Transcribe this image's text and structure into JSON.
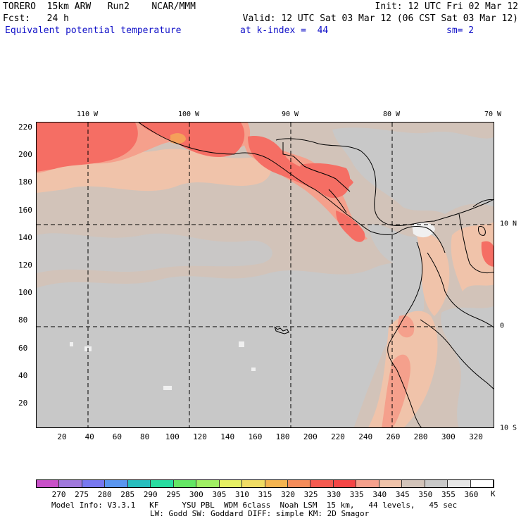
{
  "header": {
    "line1_left": "TORERO  15km ARW   Run2    NCAR/MMM",
    "line1_right": "Init: 12 UTC Fri 02 Mar 12",
    "line2_left": "Fcst:   24 h",
    "line2_right": "Valid: 12 UTC Sat 03 Mar 12 (06 CST Sat 03 Mar 12)",
    "line3_field": "Equivalent potential temperature",
    "line3_level": "at k-index =  44",
    "line3_smooth": "sm= 2"
  },
  "map": {
    "lon_labels": [
      "110 W",
      "100 W",
      "90 W",
      "80 W",
      "70 W"
    ],
    "lat_labels": [
      "10 N",
      "0",
      "10 S"
    ],
    "y_ticks": [
      "220",
      "200",
      "180",
      "160",
      "140",
      "120",
      "100",
      "80",
      "60",
      "40",
      "20"
    ],
    "x_ticks": [
      "20",
      "40",
      "60",
      "80",
      "100",
      "120",
      "140",
      "160",
      "180",
      "200",
      "220",
      "240",
      "260",
      "280",
      "300",
      "320"
    ],
    "colors": {
      "gray_350": "#c8c8c8",
      "taupe_345": "#d2c3b9",
      "peach_340": "#f0c3aa",
      "salmon_335": "#f5a08c",
      "red_330": "#f56e64",
      "red_325": "#ff5a50",
      "orange_320": "#f5a05a",
      "white_355": "#f0f0f0",
      "coast": "#000000"
    }
  },
  "colorbar": {
    "labels": [
      "270",
      "275",
      "280",
      "285",
      "290",
      "295",
      "300",
      "305",
      "310",
      "315",
      "320",
      "325",
      "330",
      "335",
      "340",
      "345",
      "350",
      "355",
      "360"
    ],
    "unit": "K",
    "colors": [
      "#c850c8",
      "#a078dc",
      "#7878f0",
      "#5a96f0",
      "#28bebe",
      "#28dca0",
      "#64e664",
      "#a0f064",
      "#e6f064",
      "#f0dc64",
      "#f5b450",
      "#f58c5a",
      "#f55a50",
      "#f54646",
      "#f5a08c",
      "#f0c3aa",
      "#d2c3b9",
      "#c8c8c8",
      "#e6e6e6",
      "#ffffff"
    ]
  },
  "footer": {
    "line1": "Model Info: V3.3.1   KF     YSU PBL  WDM 6class  Noah LSM  15 km,   44 levels,   45 sec",
    "line2": "LW: Godd SW: Goddard DIFF: simple KM: 2D Smagor"
  }
}
